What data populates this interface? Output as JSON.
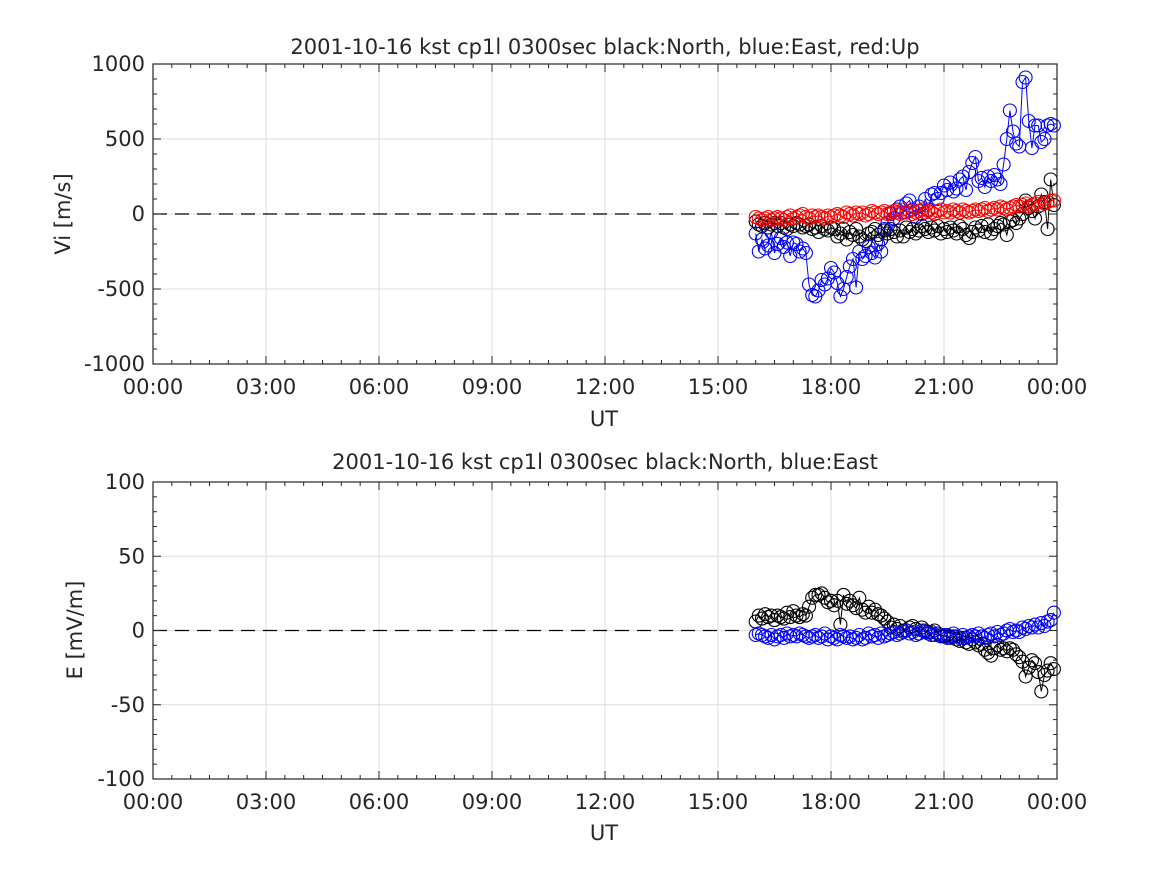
{
  "chart_data": [
    {
      "type": "scatter",
      "title": "2001-10-16 kst cp1l 0300sec black:North, blue:East, red:Up",
      "xlabel": "UT",
      "ylabel": "Vi [m/s]",
      "ylim": [
        -1000,
        1000
      ],
      "xlim_hours": [
        0,
        24
      ],
      "yticks": [
        1000,
        500,
        0,
        -500,
        -1000
      ],
      "yticklabels": [
        "1000",
        "500",
        "0",
        "-500",
        "-1000"
      ],
      "xticklabels": [
        "00:00",
        "03:00",
        "06:00",
        "09:00",
        "12:00",
        "15:00",
        "18:00",
        "21:00",
        "00:00"
      ],
      "grid": true,
      "zero_line": "dashed",
      "colors": {
        "North": "#000000",
        "East": "#0000ff",
        "Up": "#ff0000"
      },
      "x": [
        16.0,
        16.083,
        16.167,
        16.25,
        16.333,
        16.417,
        16.5,
        16.583,
        16.667,
        16.75,
        16.833,
        16.917,
        17.0,
        17.083,
        17.167,
        17.25,
        17.333,
        17.417,
        17.5,
        17.583,
        17.667,
        17.75,
        17.833,
        17.917,
        18.0,
        18.083,
        18.167,
        18.25,
        18.333,
        18.417,
        18.5,
        18.583,
        18.667,
        18.75,
        18.833,
        18.917,
        19.0,
        19.083,
        19.167,
        19.25,
        19.333,
        19.417,
        19.5,
        19.583,
        19.667,
        19.75,
        19.833,
        19.917,
        20.0,
        20.083,
        20.167,
        20.25,
        20.333,
        20.417,
        20.5,
        20.583,
        20.667,
        20.75,
        20.833,
        20.917,
        21.0,
        21.083,
        21.167,
        21.25,
        21.333,
        21.417,
        21.5,
        21.583,
        21.667,
        21.75,
        21.833,
        21.917,
        22.0,
        22.083,
        22.167,
        22.25,
        22.333,
        22.417,
        22.5,
        22.583,
        22.667,
        22.75,
        22.833,
        22.917,
        23.0,
        23.083,
        23.167,
        23.25,
        23.333,
        23.417,
        23.5,
        23.583,
        23.667,
        23.75,
        23.833,
        23.917
      ],
      "series": [
        {
          "name": "North",
          "values": [
            -50,
            -70,
            -80,
            -60,
            -90,
            -70,
            -60,
            -80,
            -60,
            -90,
            -100,
            -70,
            -80,
            -60,
            -70,
            -90,
            -80,
            -70,
            -100,
            -90,
            -120,
            -80,
            -100,
            -110,
            -90,
            -100,
            -150,
            -130,
            -100,
            -170,
            -120,
            -140,
            -100,
            -150,
            -170,
            -180,
            -130,
            -120,
            -100,
            -140,
            -170,
            -110,
            -130,
            -100,
            -120,
            -150,
            -110,
            -150,
            -90,
            -120,
            -100,
            -130,
            -110,
            -80,
            -100,
            -120,
            -90,
            -110,
            -80,
            -130,
            -100,
            -120,
            -90,
            -110,
            -130,
            -80,
            -100,
            -140,
            -160,
            -120,
            -90,
            -110,
            -80,
            -120,
            -70,
            -130,
            -100,
            -80,
            -60,
            -70,
            -140,
            -50,
            -40,
            -60,
            -30,
            0,
            90,
            40,
            20,
            -30,
            50,
            130,
            80,
            -100,
            230,
            60
          ]
        },
        {
          "name": "East",
          "values": [
            -130,
            -250,
            -170,
            -230,
            -210,
            -120,
            -260,
            -200,
            -160,
            -220,
            -190,
            -280,
            -190,
            -200,
            -250,
            -230,
            -260,
            -470,
            -540,
            -550,
            -510,
            -440,
            -470,
            -430,
            -360,
            -390,
            -460,
            -550,
            -500,
            -420,
            -350,
            -300,
            -490,
            -250,
            -300,
            -280,
            -220,
            -260,
            -290,
            -200,
            -250,
            -100,
            -60,
            0,
            -30,
            30,
            50,
            10,
            70,
            90,
            30,
            -20,
            50,
            0,
            100,
            30,
            130,
            140,
            100,
            140,
            190,
            160,
            210,
            150,
            170,
            230,
            250,
            160,
            280,
            340,
            380,
            220,
            240,
            180,
            250,
            220,
            260,
            230,
            200,
            330,
            500,
            690,
            550,
            470,
            450,
            880,
            910,
            620,
            440,
            590,
            590,
            480,
            500,
            590,
            600,
            590
          ]
        },
        {
          "name": "Up",
          "values": [
            -20,
            -30,
            -40,
            -30,
            -20,
            -40,
            -30,
            -20,
            -30,
            -40,
            -20,
            -10,
            -30,
            -20,
            -10,
            0,
            -20,
            -30,
            -10,
            -20,
            -10,
            -20,
            -30,
            -10,
            -20,
            -10,
            0,
            -10,
            -20,
            10,
            0,
            -10,
            10,
            0,
            10,
            -10,
            0,
            20,
            10,
            0,
            10,
            20,
            0,
            10,
            20,
            10,
            0,
            30,
            10,
            20,
            0,
            10,
            20,
            30,
            10,
            20,
            10,
            0,
            20,
            30,
            10,
            20,
            10,
            30,
            20,
            10,
            30,
            20,
            10,
            20,
            30,
            20,
            30,
            40,
            20,
            30,
            40,
            30,
            50,
            40,
            30,
            40,
            50,
            60,
            50,
            60,
            70,
            50,
            60,
            70,
            80,
            60,
            70,
            80,
            90,
            90
          ]
        }
      ]
    },
    {
      "type": "scatter",
      "title": "2001-10-16 kst cp1l 0300sec black:North, blue:East",
      "xlabel": "UT",
      "ylabel": "E [mV/m]",
      "ylim": [
        -100,
        100
      ],
      "xlim_hours": [
        0,
        24
      ],
      "yticks": [
        100,
        50,
        0,
        -50,
        -100
      ],
      "yticklabels": [
        "100",
        "50",
        "0",
        "-50",
        "-100"
      ],
      "xticklabels": [
        "00:00",
        "03:00",
        "06:00",
        "09:00",
        "12:00",
        "15:00",
        "18:00",
        "21:00",
        "00:00"
      ],
      "grid": true,
      "zero_line": "dashed",
      "colors": {
        "North": "#000000",
        "East": "#0000ff"
      },
      "x": [
        16.0,
        16.083,
        16.167,
        16.25,
        16.333,
        16.417,
        16.5,
        16.583,
        16.667,
        16.75,
        16.833,
        16.917,
        17.0,
        17.083,
        17.167,
        17.25,
        17.333,
        17.417,
        17.5,
        17.583,
        17.667,
        17.75,
        17.833,
        17.917,
        18.0,
        18.083,
        18.167,
        18.25,
        18.333,
        18.417,
        18.5,
        18.583,
        18.667,
        18.75,
        18.833,
        18.917,
        19.0,
        19.083,
        19.167,
        19.25,
        19.333,
        19.417,
        19.5,
        19.583,
        19.667,
        19.75,
        19.833,
        19.917,
        20.0,
        20.083,
        20.167,
        20.25,
        20.333,
        20.417,
        20.5,
        20.583,
        20.667,
        20.75,
        20.833,
        20.917,
        21.0,
        21.083,
        21.167,
        21.25,
        21.333,
        21.417,
        21.5,
        21.583,
        21.667,
        21.75,
        21.833,
        21.917,
        22.0,
        22.083,
        22.167,
        22.25,
        22.333,
        22.417,
        22.5,
        22.583,
        22.667,
        22.75,
        22.833,
        22.917,
        23.0,
        23.083,
        23.167,
        23.25,
        23.333,
        23.417,
        23.5,
        23.583,
        23.667,
        23.75,
        23.833,
        23.917
      ],
      "series": [
        {
          "name": "North",
          "values": [
            6,
            10,
            8,
            11,
            9,
            10,
            7,
            10,
            9,
            8,
            12,
            9,
            13,
            10,
            9,
            11,
            10,
            16,
            22,
            24,
            24,
            25,
            22,
            19,
            20,
            17,
            20,
            4,
            24,
            18,
            20,
            17,
            15,
            22,
            14,
            12,
            16,
            12,
            14,
            11,
            10,
            8,
            6,
            2,
            4,
            1,
            3,
            0,
            0,
            2,
            3,
            1,
            -2,
            2,
            0,
            -1,
            -3,
            0,
            -2,
            -3,
            -4,
            -3,
            -5,
            -4,
            -6,
            -7,
            -5,
            -8,
            -9,
            -6,
            -8,
            -10,
            -9,
            -13,
            -15,
            -17,
            -12,
            -10,
            -13,
            -12,
            -14,
            -12,
            -13,
            -16,
            -18,
            -21,
            -31,
            -25,
            -20,
            -22,
            -28,
            -41,
            -30,
            -27,
            -22,
            -26
          ]
        },
        {
          "name": "East",
          "values": [
            -3,
            -2,
            -3,
            -4,
            -5,
            -3,
            -6,
            -4,
            -3,
            -5,
            -2,
            -4,
            -3,
            -4,
            -2,
            -3,
            -4,
            -5,
            -4,
            -3,
            -5,
            -4,
            -2,
            -6,
            -4,
            -5,
            -6,
            -3,
            -4,
            -5,
            -4,
            -6,
            -5,
            -3,
            -6,
            -5,
            -2,
            -4,
            -3,
            -5,
            -2,
            -4,
            -3,
            -2,
            -1,
            -3,
            -2,
            -1,
            0,
            -2,
            -1,
            -3,
            -2,
            0,
            -1,
            -2,
            -1,
            -3,
            -2,
            -4,
            -3,
            -5,
            -4,
            -2,
            -4,
            -5,
            -3,
            -5,
            -4,
            -3,
            -4,
            -2,
            -4,
            -5,
            -3,
            -2,
            -4,
            -1,
            -3,
            -2,
            0,
            1,
            -1,
            0,
            -1,
            2,
            1,
            3,
            2,
            4,
            2,
            5,
            3,
            6,
            7,
            12
          ]
        }
      ]
    }
  ]
}
